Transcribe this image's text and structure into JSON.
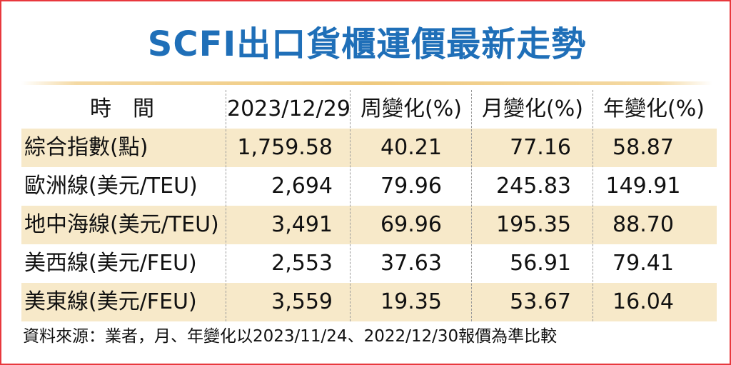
{
  "title": "SCFI出口貨櫃運價最新走勢",
  "table": {
    "headers": [
      "時間",
      "2023/12/29",
      "周變化(%)",
      "月變化(%)",
      "年變化(%)"
    ],
    "rows": [
      [
        "綜合指數(點)",
        "1,759.58",
        "40.21",
        "77.16",
        "58.87"
      ],
      [
        "歐洲線(美元/TEU)",
        "2,694",
        "79.96",
        "245.83",
        "149.91"
      ],
      [
        "地中海線(美元/TEU)",
        "3,491",
        "69.96",
        "195.35",
        "88.70"
      ],
      [
        "美西線(美元/FEU)",
        "2,553",
        "37.63",
        "56.91",
        "79.41"
      ],
      [
        "美東線(美元/FEU)",
        "3,559",
        "19.35",
        "53.67",
        "16.04"
      ]
    ]
  },
  "footer": "資料來源：業者，月、年變化以2023/11/24、2022/12/30報價為準比較",
  "colors": {
    "title": "#1f6fb8",
    "border": "#e8383d",
    "row_tint": "#f7e9c9"
  }
}
